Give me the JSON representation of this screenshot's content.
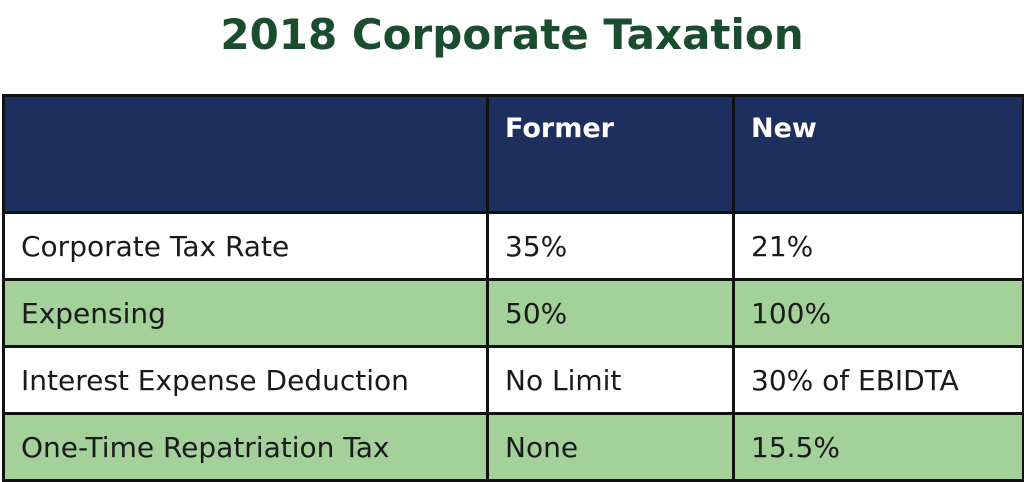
{
  "title": "2018 Corporate Taxation",
  "table": {
    "headers": [
      "",
      "Former",
      "New"
    ],
    "rows": [
      {
        "label": "Corporate Tax Rate",
        "former": "35%",
        "new": "21%"
      },
      {
        "label": "Expensing",
        "former": "50%",
        "new": "100%"
      },
      {
        "label": "Interest Expense Deduction",
        "former": "No Limit",
        "new": "30% of EBIDTA"
      },
      {
        "label": "One-Time Repatriation Tax",
        "former": "None",
        "new": "15.5%"
      }
    ]
  },
  "colors": {
    "title": "#1a4d2e",
    "header_bg": "#1d2f5e",
    "row_green": "#a4d09a",
    "row_white": "#ffffff",
    "border": "#111111"
  }
}
